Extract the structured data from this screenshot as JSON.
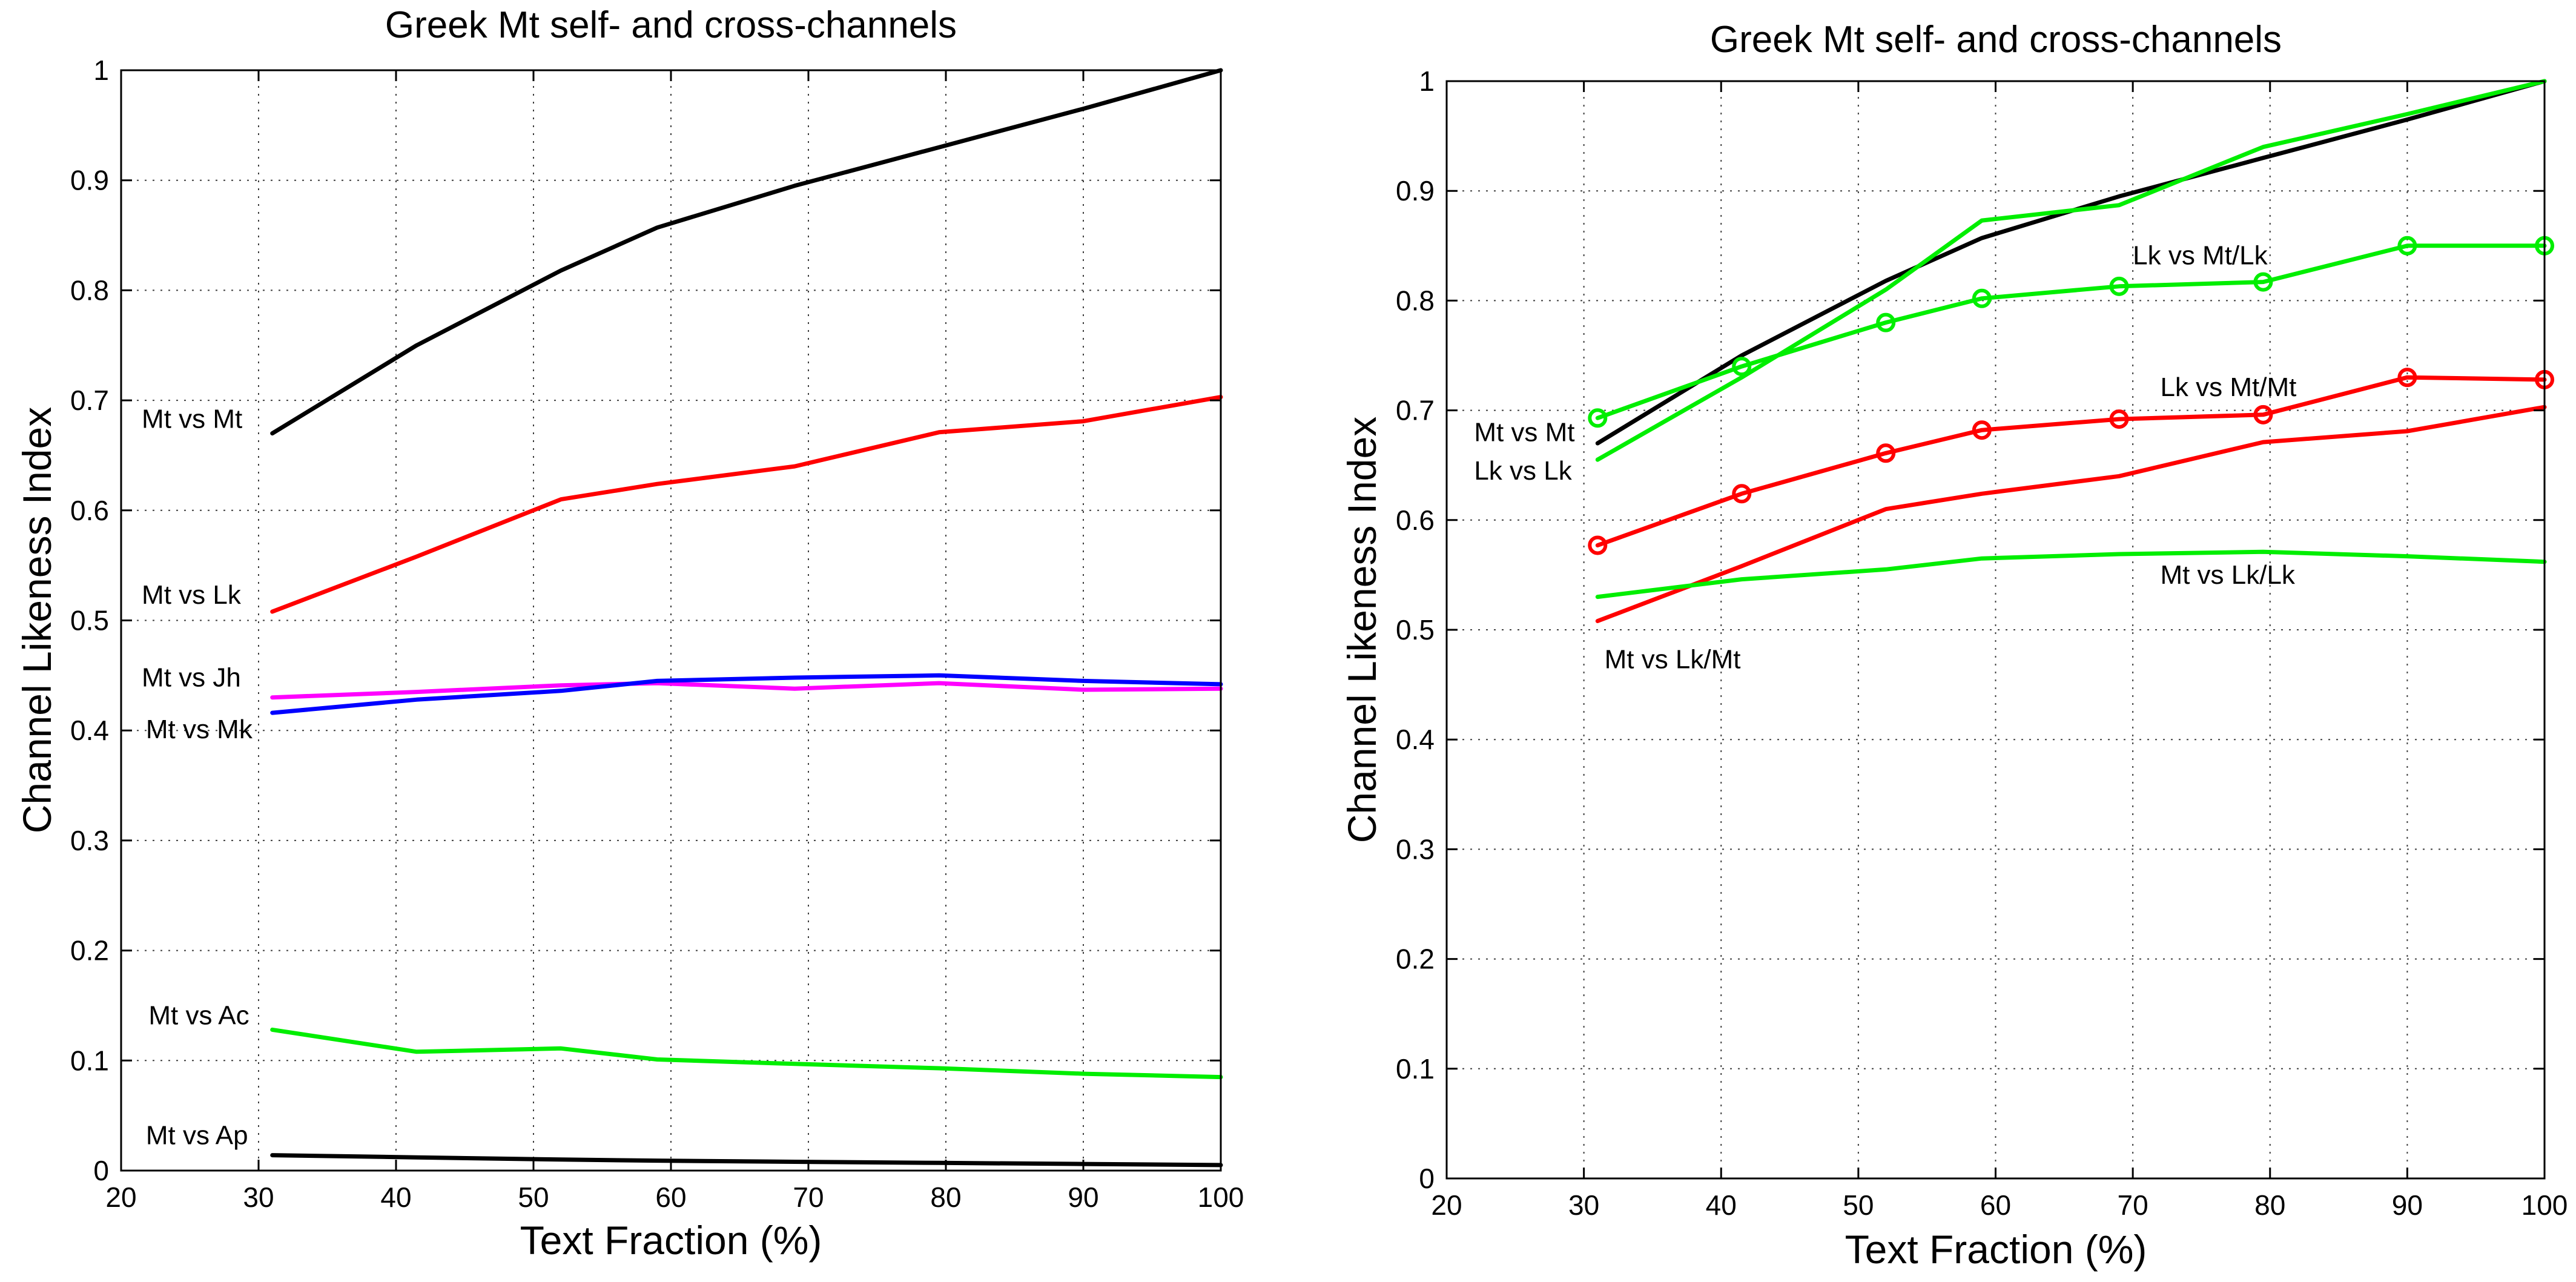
{
  "chart_data": [
    {
      "type": "line",
      "title": "Greek Mt self- and cross-channels",
      "xlabel": "Text Fraction (%)",
      "ylabel": "Channel Likeness Index",
      "xlim": [
        20,
        100
      ],
      "ylim": [
        0,
        1
      ],
      "xticks": [
        20,
        30,
        40,
        50,
        60,
        70,
        80,
        90,
        100
      ],
      "yticks": [
        0,
        0.1,
        0.2,
        0.3,
        0.4,
        0.5,
        0.6,
        0.7,
        0.8,
        0.9,
        1
      ],
      "ytick_labels": [
        "0",
        "0.1",
        "0.2",
        "0.3",
        "0.4",
        "0.5",
        "0.6",
        "0.7",
        "0.8",
        "0.9",
        "1"
      ],
      "grid": true,
      "series": [
        {
          "name": "Mt vs Mt",
          "color": "#000000",
          "marker": "none",
          "x": [
            31,
            41.5,
            52,
            59,
            69,
            79.5,
            90,
            100
          ],
          "y": [
            0.67,
            0.75,
            0.818,
            0.857,
            0.895,
            0.93,
            0.965,
            1.0
          ]
        },
        {
          "name": "Mt vs Lk",
          "color": "#ff0000",
          "marker": "none",
          "x": [
            31,
            41.5,
            52,
            59,
            69,
            79.5,
            90,
            100
          ],
          "y": [
            0.508,
            0.558,
            0.61,
            0.624,
            0.64,
            0.671,
            0.681,
            0.703
          ]
        },
        {
          "name": "Mt vs Jh",
          "color": "#ff00ff",
          "marker": "none",
          "x": [
            31,
            41.5,
            52,
            59,
            69,
            79.5,
            90,
            100
          ],
          "y": [
            0.43,
            0.435,
            0.441,
            0.443,
            0.438,
            0.443,
            0.437,
            0.438
          ]
        },
        {
          "name": "Mt vs Mk",
          "color": "#0000ff",
          "marker": "none",
          "x": [
            31,
            41.5,
            52,
            59,
            69,
            79.5,
            90,
            100
          ],
          "y": [
            0.416,
            0.428,
            0.436,
            0.445,
            0.448,
            0.45,
            0.445,
            0.442
          ]
        },
        {
          "name": "Mt vs Ac",
          "color": "#00ee00",
          "marker": "none",
          "x": [
            31,
            41.5,
            52,
            59,
            69,
            79.5,
            90,
            100
          ],
          "y": [
            0.128,
            0.108,
            0.111,
            0.101,
            0.097,
            0.093,
            0.088,
            0.085
          ]
        },
        {
          "name": "Mt vs Ap",
          "color": "#000000",
          "marker": "none",
          "x": [
            31,
            41.5,
            52,
            59,
            69,
            79.5,
            90,
            100
          ],
          "y": [
            0.014,
            0.012,
            0.01,
            0.009,
            0.008,
            0.007,
            0.006,
            0.005
          ]
        }
      ],
      "annotations": [
        {
          "text": "Mt vs Mt",
          "x": 21.5,
          "y": 0.675
        },
        {
          "text": "Mt vs Lk",
          "x": 21.5,
          "y": 0.515
        },
        {
          "text": "Mt vs Jh",
          "x": 21.5,
          "y": 0.44
        },
        {
          "text": "Mt vs Mk",
          "x": 21.8,
          "y": 0.393
        },
        {
          "text": "Mt vs Ac",
          "x": 22,
          "y": 0.133
        },
        {
          "text": "Mt vs Ap",
          "x": 21.8,
          "y": 0.024
        }
      ]
    },
    {
      "type": "line",
      "title": "Greek Mt self- and cross-channels",
      "xlabel": "Text Fraction (%)",
      "ylabel": "Channel Likeness Index",
      "xlim": [
        20,
        100
      ],
      "ylim": [
        0,
        1
      ],
      "xticks": [
        20,
        30,
        40,
        50,
        60,
        70,
        80,
        90,
        100
      ],
      "yticks": [
        0,
        0.1,
        0.2,
        0.3,
        0.4,
        0.5,
        0.6,
        0.7,
        0.8,
        0.9,
        1
      ],
      "ytick_labels": [
        "0",
        "0.1",
        "0.2",
        "0.3",
        "0.4",
        "0.5",
        "0.6",
        "0.7",
        "0.8",
        "0.9",
        "1"
      ],
      "grid": true,
      "series": [
        {
          "name": "Mt vs Mt",
          "color": "#000000",
          "marker": "none",
          "x": [
            31,
            41.5,
            52,
            59,
            69,
            79.5,
            90,
            100
          ],
          "y": [
            0.67,
            0.75,
            0.818,
            0.857,
            0.895,
            0.93,
            0.965,
            1.0
          ]
        },
        {
          "name": "Lk vs Lk",
          "color": "#00ee00",
          "marker": "none",
          "x": [
            31,
            41.5,
            52,
            59,
            69,
            79.5,
            90,
            100
          ],
          "y": [
            0.655,
            0.73,
            0.81,
            0.873,
            0.887,
            0.94,
            0.97,
            1.0
          ]
        },
        {
          "name": "Lk vs Mt/Lk",
          "color": "#00ee00",
          "marker": "circle",
          "x": [
            31,
            41.5,
            52,
            59,
            69,
            79.5,
            90,
            100
          ],
          "y": [
            0.693,
            0.74,
            0.78,
            0.802,
            0.813,
            0.817,
            0.85,
            0.85
          ]
        },
        {
          "name": "Lk vs Mt/Mt",
          "color": "#ff0000",
          "marker": "circle",
          "x": [
            31,
            41.5,
            52,
            59,
            69,
            79.5,
            90,
            100
          ],
          "y": [
            0.577,
            0.624,
            0.661,
            0.682,
            0.692,
            0.696,
            0.73,
            0.728
          ]
        },
        {
          "name": "Mt vs Lk/Mt",
          "color": "#ff0000",
          "marker": "none",
          "x": [
            31,
            41.5,
            52,
            59,
            69,
            79.5,
            90,
            100
          ],
          "y": [
            0.508,
            0.558,
            0.61,
            0.624,
            0.64,
            0.671,
            0.681,
            0.703
          ]
        },
        {
          "name": "Mt vs Lk/Lk",
          "color": "#00ee00",
          "marker": "none",
          "x": [
            31,
            41.5,
            52,
            59,
            69,
            79.5,
            90,
            100
          ],
          "y": [
            0.53,
            0.546,
            0.555,
            0.565,
            0.569,
            0.571,
            0.567,
            0.562
          ]
        }
      ],
      "annotations": [
        {
          "text": "Mt vs Mt",
          "x": 22,
          "y": 0.672
        },
        {
          "text": "Lk vs Lk",
          "x": 22,
          "y": 0.637
        },
        {
          "text": "Lk vs Mt/Lk",
          "x": 70,
          "y": 0.833
        },
        {
          "text": "Lk vs Mt/Mt",
          "x": 72,
          "y": 0.713
        },
        {
          "text": "Mt vs Lk/Lk",
          "x": 72,
          "y": 0.542
        },
        {
          "text": "Mt vs Lk/Mt",
          "x": 31.5,
          "y": 0.465
        }
      ]
    }
  ]
}
